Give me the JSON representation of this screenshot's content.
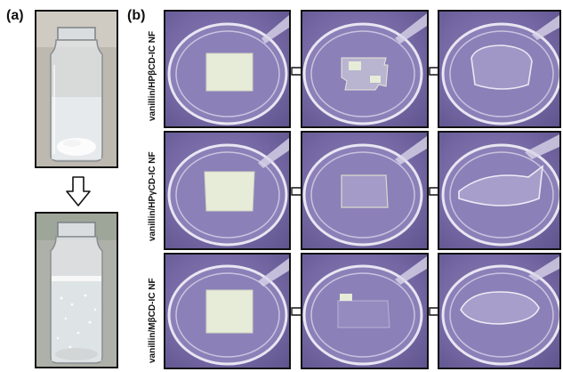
{
  "panels": {
    "a": {
      "label": "(a)"
    },
    "b": {
      "label": "(b)"
    }
  },
  "rows": [
    {
      "label": "vanillin/HPβCD-IC NF"
    },
    {
      "label": "vanillin/HPγCD-IC NF"
    },
    {
      "label": "vanillin/MβCD-IC NF"
    }
  ],
  "colors": {
    "frame": "#111111",
    "dish_background": "#7467a3",
    "film": "#e6ecd8",
    "arrow_fill": "#ffffff"
  },
  "icons": {
    "down_arrow": "down-arrow-icon",
    "right_arrow": "right-arrow-icon"
  }
}
